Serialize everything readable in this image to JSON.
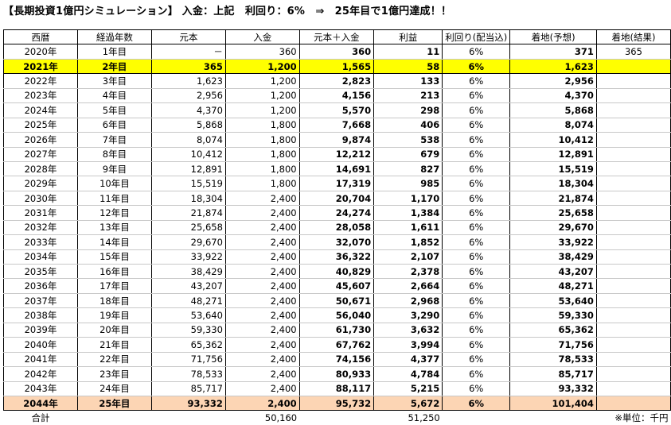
{
  "title": "【長期投資1億円シミュレーション】 入金：上記　利回り：6%　⇒　25年目で1億円達成！！",
  "headers": [
    "西暦",
    "経過年数",
    "元本",
    "入金",
    "元本＋入金",
    "利益",
    "利回り(配当込)",
    "着地(予想)",
    "着地(結果)"
  ],
  "rows": [
    [
      "2020年",
      "1年目",
      "－",
      "360",
      "360",
      "11",
      "6%",
      "371",
      "365"
    ],
    [
      "2021年",
      "2年目",
      "365",
      "1,200",
      "1,565",
      "58",
      "6%",
      "1,623",
      ""
    ],
    [
      "2022年",
      "3年目",
      "1,623",
      "1,200",
      "2,823",
      "133",
      "6%",
      "2,956",
      ""
    ],
    [
      "2023年",
      "4年目",
      "2,956",
      "1,200",
      "4,156",
      "213",
      "6%",
      "4,370",
      ""
    ],
    [
      "2024年",
      "5年目",
      "4,370",
      "1,200",
      "5,570",
      "298",
      "6%",
      "5,868",
      ""
    ],
    [
      "2025年",
      "6年目",
      "5,868",
      "1,800",
      "7,668",
      "406",
      "6%",
      "8,074",
      ""
    ],
    [
      "2026年",
      "7年目",
      "8,074",
      "1,800",
      "9,874",
      "538",
      "6%",
      "10,412",
      ""
    ],
    [
      "2027年",
      "8年目",
      "10,412",
      "1,800",
      "12,212",
      "679",
      "6%",
      "12,891",
      ""
    ],
    [
      "2028年",
      "9年目",
      "12,891",
      "1,800",
      "14,691",
      "827",
      "6%",
      "15,519",
      ""
    ],
    [
      "2029年",
      "10年目",
      "15,519",
      "1,800",
      "17,319",
      "985",
      "6%",
      "18,304",
      ""
    ],
    [
      "2030年",
      "11年目",
      "18,304",
      "2,400",
      "20,704",
      "1,170",
      "6%",
      "21,874",
      ""
    ],
    [
      "2031年",
      "12年目",
      "21,874",
      "2,400",
      "24,274",
      "1,384",
      "6%",
      "25,658",
      ""
    ],
    [
      "2032年",
      "13年目",
      "25,658",
      "2,400",
      "28,058",
      "1,611",
      "6%",
      "29,670",
      ""
    ],
    [
      "2033年",
      "14年目",
      "29,670",
      "2,400",
      "32,070",
      "1,852",
      "6%",
      "33,922",
      ""
    ],
    [
      "2034年",
      "15年目",
      "33,922",
      "2,400",
      "36,322",
      "2,107",
      "6%",
      "38,429",
      ""
    ],
    [
      "2035年",
      "16年目",
      "38,429",
      "2,400",
      "40,829",
      "2,378",
      "6%",
      "43,207",
      ""
    ],
    [
      "2036年",
      "17年目",
      "43,207",
      "2,400",
      "45,607",
      "2,664",
      "6%",
      "48,271",
      ""
    ],
    [
      "2037年",
      "18年目",
      "48,271",
      "2,400",
      "50,671",
      "2,968",
      "6%",
      "53,640",
      ""
    ],
    [
      "2038年",
      "19年目",
      "53,640",
      "2,400",
      "56,040",
      "3,290",
      "6%",
      "59,330",
      ""
    ],
    [
      "2039年",
      "20年目",
      "59,330",
      "2,400",
      "61,730",
      "3,632",
      "6%",
      "65,362",
      ""
    ],
    [
      "2040年",
      "21年目",
      "65,362",
      "2,400",
      "67,762",
      "3,994",
      "6%",
      "71,756",
      ""
    ],
    [
      "2041年",
      "22年目",
      "71,756",
      "2,400",
      "74,156",
      "4,377",
      "6%",
      "78,533",
      ""
    ],
    [
      "2042年",
      "23年目",
      "78,533",
      "2,400",
      "80,933",
      "4,784",
      "6%",
      "85,717",
      ""
    ],
    [
      "2043年",
      "24年目",
      "85,717",
      "2,400",
      "88,117",
      "5,215",
      "6%",
      "93,332",
      ""
    ],
    [
      "2044年",
      "25年目",
      "93,332",
      "2,400",
      "95,732",
      "5,672",
      "6%",
      "101,404",
      ""
    ]
  ],
  "highlight_colors": {
    "current_year": "#ffff00",
    "goal_year": "#fcd5b4"
  },
  "totals": {
    "label": "合計",
    "deposit_total": "50,160",
    "profit_total": "51,250",
    "unit_note": "※単位：千円"
  }
}
